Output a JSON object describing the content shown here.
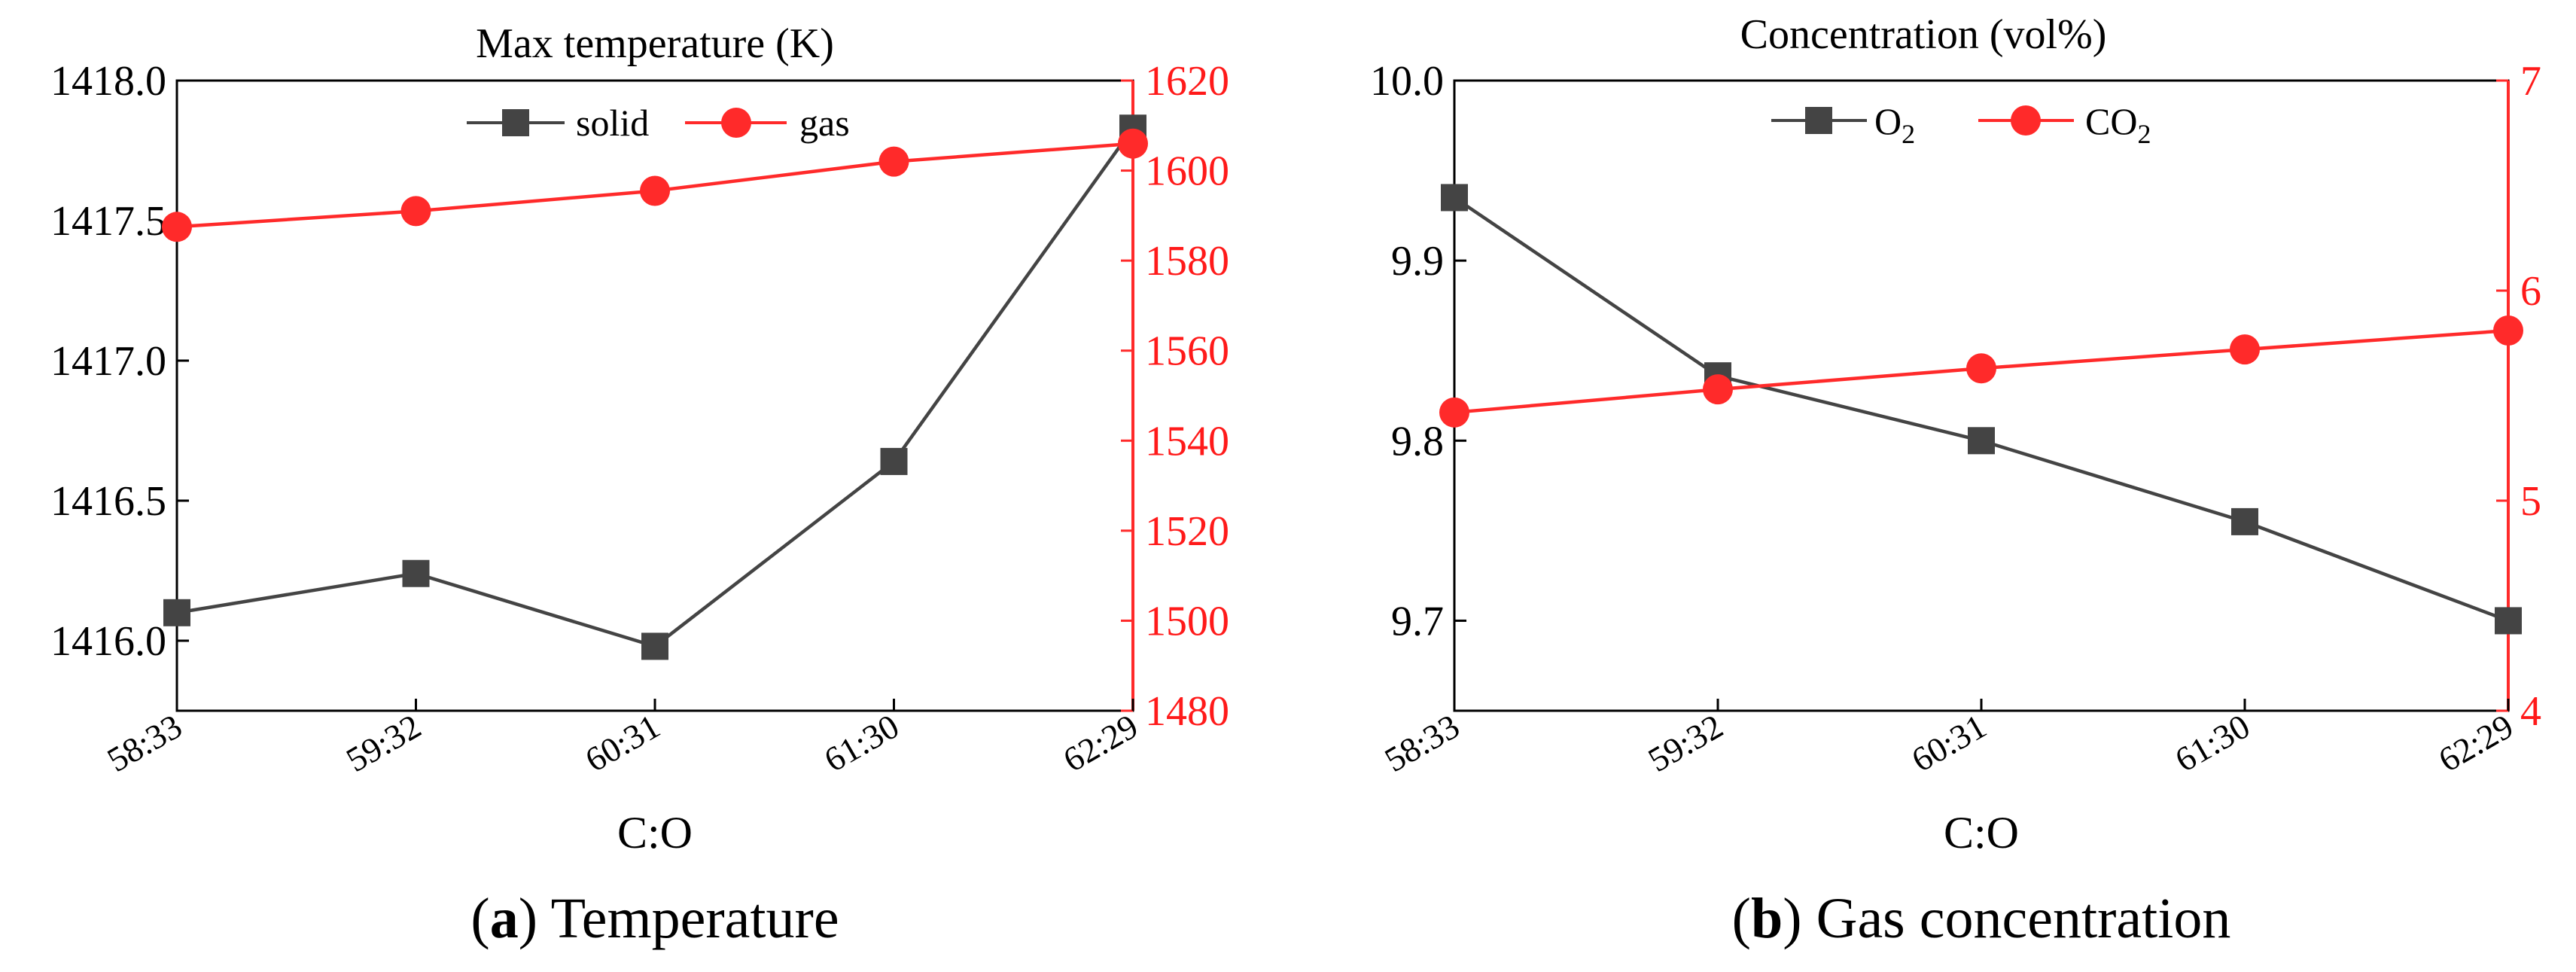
{
  "colors": {
    "dark": "#444444",
    "red": "#ff2a2a"
  },
  "chart_data": [
    {
      "id": "a",
      "type": "line",
      "title": "Max temperature (K)",
      "xlabel": "C:O",
      "categories": [
        "58:33",
        "59:32",
        "60:31",
        "61:30",
        "62:29"
      ],
      "left_axis": {
        "ylim": [
          1415.75,
          1418.0
        ],
        "ticks": [
          "1416.0",
          "1416.5",
          "1417.0",
          "1417.5",
          "1418.0"
        ]
      },
      "right_axis": {
        "ylim": [
          1480,
          1620
        ],
        "ticks": [
          "1480",
          "1500",
          "1520",
          "1540",
          "1560",
          "1580",
          "1600",
          "1620"
        ]
      },
      "series": [
        {
          "name": "solid",
          "axis": "left",
          "marker": "square",
          "color": "#444444",
          "values": [
            1416.1,
            1416.24,
            1415.98,
            1416.64,
            1417.83
          ]
        },
        {
          "name": "gas",
          "axis": "right",
          "marker": "circle",
          "color": "#ff2a2a",
          "values": [
            1587.5,
            1591,
            1595.5,
            1602,
            1606
          ]
        }
      ],
      "legend": [
        "solid",
        "gas"
      ],
      "caption_label": "a",
      "caption_text": "Temperature"
    },
    {
      "id": "b",
      "type": "line",
      "title": "Concentration (vol%)",
      "xlabel": "C:O",
      "categories": [
        "58:33",
        "59:32",
        "60:31",
        "61:30",
        "62:29"
      ],
      "left_axis": {
        "ylim": [
          9.65,
          10.0
        ],
        "ticks": [
          "9.7",
          "9.8",
          "9.9",
          "10.0"
        ]
      },
      "right_axis": {
        "ylim": [
          4,
          7
        ],
        "ticks": [
          "4",
          "5",
          "6",
          "7"
        ]
      },
      "series": [
        {
          "name": "O2",
          "name_base": "O",
          "name_sub": "2",
          "axis": "left",
          "marker": "square",
          "color": "#444444",
          "values": [
            9.935,
            9.836,
            9.8,
            9.755,
            9.7
          ]
        },
        {
          "name": "CO2",
          "name_base": "CO",
          "name_sub": "2",
          "axis": "right",
          "marker": "circle",
          "color": "#ff2a2a",
          "values": [
            5.42,
            5.53,
            5.63,
            5.72,
            5.81
          ]
        }
      ],
      "legend": [
        "O2",
        "CO2"
      ],
      "caption_label": "b",
      "caption_text": "Gas concentration"
    }
  ]
}
